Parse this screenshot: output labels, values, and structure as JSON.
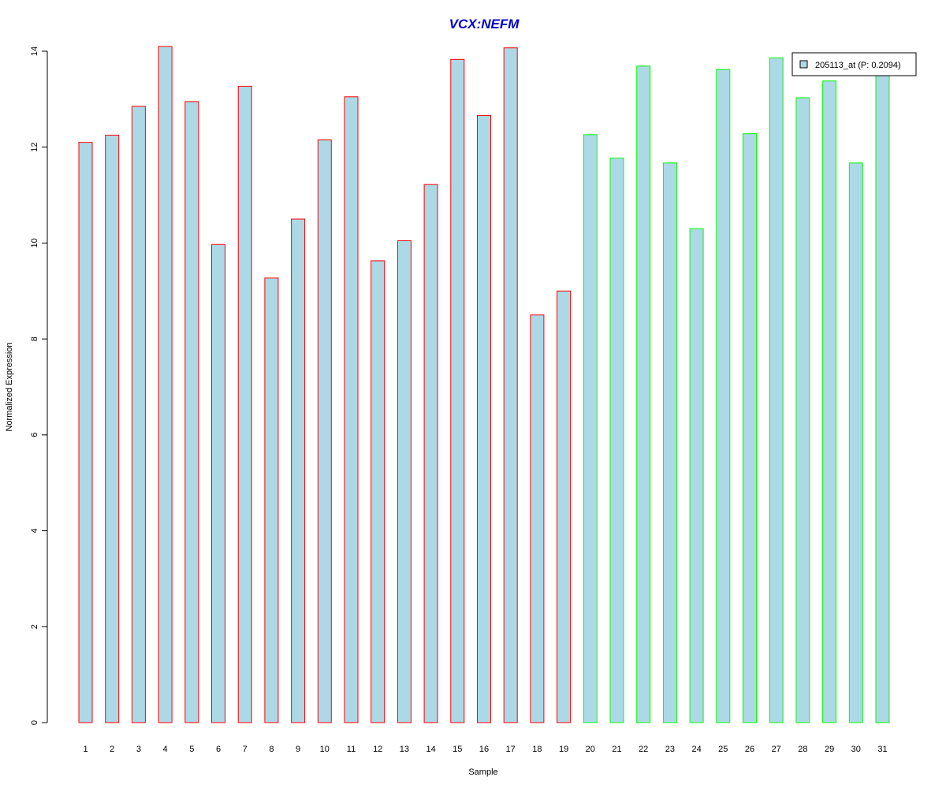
{
  "chart_data": {
    "type": "bar",
    "title": "VCX:NEFM",
    "xlabel": "Sample",
    "ylabel": "Normalized Expression",
    "ylim": [
      0,
      14
    ],
    "yticks": [
      0,
      2,
      4,
      6,
      8,
      10,
      12,
      14
    ],
    "categories": [
      "1",
      "2",
      "3",
      "4",
      "5",
      "6",
      "7",
      "8",
      "9",
      "10",
      "11",
      "12",
      "13",
      "14",
      "15",
      "16",
      "17",
      "18",
      "19",
      "20",
      "21",
      "22",
      "23",
      "24",
      "25",
      "26",
      "27",
      "28",
      "29",
      "30",
      "31"
    ],
    "values": [
      12.1,
      12.25,
      12.85,
      14.1,
      12.95,
      9.97,
      13.27,
      9.27,
      10.5,
      12.15,
      13.05,
      9.63,
      10.05,
      11.22,
      13.83,
      12.66,
      14.07,
      8.5,
      9.0,
      12.26,
      11.77,
      13.69,
      11.67,
      10.3,
      13.62,
      12.28,
      13.86,
      13.03,
      13.38,
      11.67,
      13.5
    ],
    "group_of_each_bar": [
      1,
      1,
      1,
      1,
      1,
      1,
      1,
      1,
      1,
      1,
      1,
      1,
      1,
      1,
      1,
      1,
      1,
      1,
      1,
      2,
      2,
      2,
      2,
      2,
      2,
      2,
      2,
      2,
      2,
      2,
      2
    ],
    "legend": {
      "label": "205113_at (P: 0.2094)",
      "placement": "top-right"
    },
    "grid": false,
    "colors": {
      "bar_fill": "#add8e6",
      "group_1_border": "#ff0000",
      "group_2_border": "#00ff00",
      "title": "#0000cd",
      "axis": "#000000"
    }
  }
}
